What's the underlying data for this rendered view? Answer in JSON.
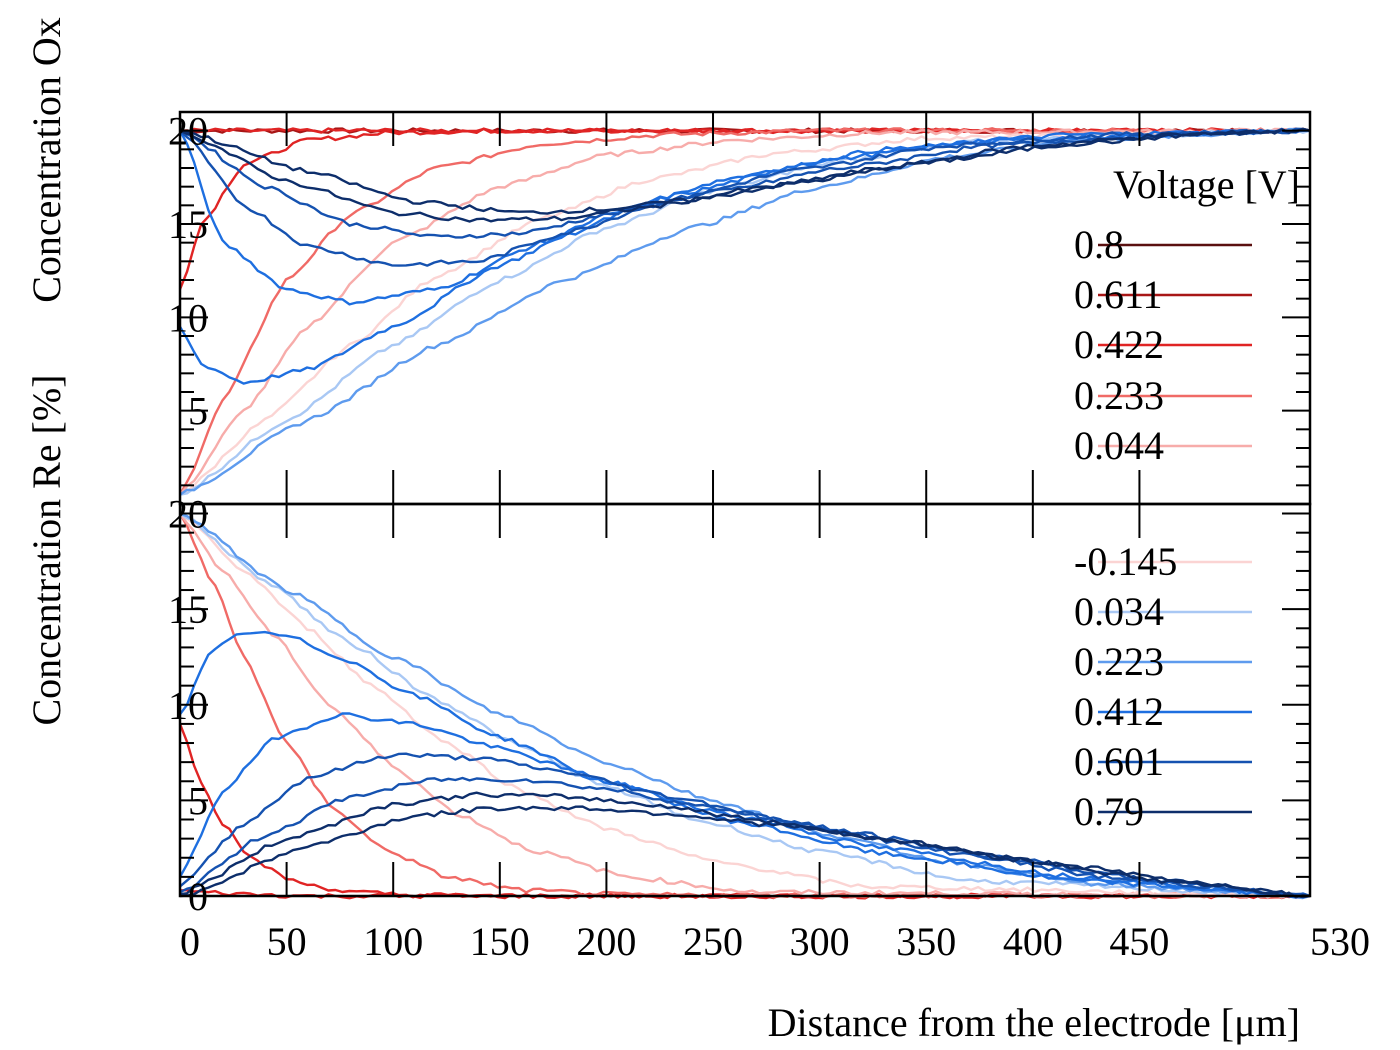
{
  "chart_data": {
    "type": "line",
    "xlabel": "Distance from the electrode [μm]",
    "xticks": [
      "0",
      "50",
      "100",
      "150",
      "200",
      "250",
      "300",
      "350",
      "400",
      "450",
      "530"
    ],
    "xlim": [
      0,
      530
    ],
    "legend": {
      "title": "Voltage [V]",
      "placement": "right",
      "entries": [
        {
          "label": "0.8",
          "color": "#5a1010"
        },
        {
          "label": "0.611",
          "color": "#a81616"
        },
        {
          "label": "0.422",
          "color": "#e02424"
        },
        {
          "label": "0.233",
          "color": "#f06a66"
        },
        {
          "label": "0.044",
          "color": "#f7acaa"
        },
        {
          "label": "-0.145",
          "color": "#fbd4d3"
        },
        {
          "label": "0.034",
          "color": "#a9c8f4"
        },
        {
          "label": "0.223",
          "color": "#5e9bee"
        },
        {
          "label": "0.412",
          "color": "#1e6fe0"
        },
        {
          "label": "0.601",
          "color": "#1552b0"
        },
        {
          "label": "0.79",
          "color": "#0d2e6b"
        }
      ]
    },
    "panels": [
      {
        "name": "top",
        "ylabel": "Concentration Ox",
        "ylim": [
          0,
          21
        ],
        "yticks": [
          "5",
          "10",
          "15",
          "20"
        ],
        "series": [
          {
            "color": "#a81616",
            "x": [
              0,
              530
            ],
            "y": [
              20,
              20
            ]
          },
          {
            "color": "#e02424",
            "x": [
              0,
              530
            ],
            "y": [
              20,
              20
            ]
          },
          {
            "color": "#e02424",
            "x": [
              0,
              10,
              30,
              60,
              100,
              150,
              250,
              530
            ],
            "y": [
              11.5,
              15,
              18.2,
              19.5,
              19.9,
              20,
              20,
              20
            ]
          },
          {
            "color": "#f06a66",
            "x": [
              0,
              20,
              50,
              80,
              120,
              170,
              230,
              300,
              530
            ],
            "y": [
              0.5,
              5.5,
              12,
              15.5,
              18,
              19.3,
              19.8,
              20,
              20
            ]
          },
          {
            "color": "#f7acaa",
            "x": [
              0,
              30,
              60,
              100,
              150,
              200,
              260,
              330,
              530
            ],
            "y": [
              0.5,
              5,
              9.5,
              14,
              17,
              18.7,
              19.5,
              19.9,
              20
            ]
          },
          {
            "color": "#fbd4d3",
            "x": [
              0,
              40,
              80,
              120,
              170,
              220,
              280,
              350,
              530
            ],
            "y": [
              0.5,
              4.5,
              8.5,
              12.2,
              15.3,
              17.4,
              18.8,
              19.6,
              20
            ]
          },
          {
            "color": "#a9c8f4",
            "x": [
              0,
              50,
              100,
              150,
              200,
              250,
              310,
              380,
              530
            ],
            "y": [
              0.5,
              4.5,
              8.5,
              12,
              14.8,
              16.8,
              18.4,
              19.5,
              20
            ]
          },
          {
            "color": "#5e9bee",
            "x": [
              0,
              60,
              120,
              180,
              240,
              300,
              360,
              420,
              530
            ],
            "y": [
              0.5,
              4.5,
              8.5,
              12,
              14.8,
              17,
              18.6,
              19.5,
              20
            ]
          },
          {
            "color": "#1e6fe0",
            "x": [
              0,
              10,
              30,
              60,
              100,
              150,
              200,
              260,
              330,
              420,
              530
            ],
            "y": [
              9.5,
              7.5,
              6.5,
              7.2,
              9.5,
              12.8,
              15.5,
              17.5,
              19,
              19.8,
              20
            ]
          },
          {
            "color": "#1e6fe0",
            "x": [
              0,
              20,
              50,
              80,
              120,
              170,
              230,
              300,
              380,
              530
            ],
            "y": [
              20,
              14,
              11.5,
              10.8,
              11.5,
              14,
              16.5,
              18.4,
              19.5,
              20
            ]
          },
          {
            "color": "#1552b0",
            "x": [
              0,
              30,
              60,
              100,
              140,
              180,
              230,
              290,
              360,
              440,
              530
            ],
            "y": [
              20,
              16,
              13.8,
              12.8,
              13,
              14.5,
              16.3,
              17.9,
              19.2,
              19.8,
              20
            ]
          },
          {
            "color": "#1552b0",
            "x": [
              0,
              40,
              80,
              120,
              160,
              200,
              250,
              310,
              380,
              460,
              530
            ],
            "y": [
              20,
              17,
              15,
              14.3,
              14.5,
              15.5,
              16.7,
              18,
              19.2,
              19.8,
              20
            ]
          },
          {
            "color": "#0d2e6b",
            "x": [
              0,
              50,
              100,
              140,
              180,
              220,
              270,
              330,
              400,
              470,
              530
            ],
            "y": [
              20,
              17.3,
              15.6,
              15.2,
              15.3,
              15.9,
              16.9,
              18,
              19.2,
              19.8,
              20
            ]
          },
          {
            "color": "#0d2e6b",
            "x": [
              0,
              60,
              110,
              160,
              200,
              240,
              290,
              350,
              420,
              480,
              530
            ],
            "y": [
              20,
              17.8,
              16.2,
              15.6,
              15.8,
              16.3,
              17.2,
              18.3,
              19.3,
              19.8,
              20
            ]
          }
        ]
      },
      {
        "name": "bottom",
        "ylabel": "Concentration Re [%]",
        "ylim": [
          0,
          20.5
        ],
        "yticks": [
          "0",
          "5",
          "10",
          "15",
          "20"
        ],
        "series": [
          {
            "color": "#e02424",
            "x": [
              0,
              10,
              30,
              60,
              100,
              530
            ],
            "y": [
              0.3,
              0.2,
              0.1,
              0,
              0,
              0
            ]
          },
          {
            "color": "#e02424",
            "x": [
              0,
              10,
              20,
              35,
              55,
              80,
              110,
              150,
              530
            ],
            "y": [
              9,
              6,
              3.8,
              1.8,
              0.7,
              0.2,
              0.05,
              0,
              0
            ]
          },
          {
            "color": "#f06a66",
            "x": [
              0,
              15,
              30,
              50,
              70,
              95,
              125,
              160,
              210,
              530
            ],
            "y": [
              20,
              16.5,
              12.5,
              8,
              4.8,
              2.5,
              1,
              0.3,
              0.05,
              0
            ]
          },
          {
            "color": "#f7acaa",
            "x": [
              0,
              20,
              45,
              70,
              100,
              130,
              165,
              210,
              270,
              530
            ],
            "y": [
              20,
              17,
              13.5,
              10,
              6.8,
              4.3,
              2.4,
              1,
              0.2,
              0
            ]
          },
          {
            "color": "#fbd4d3",
            "x": [
              0,
              30,
              60,
              90,
              125,
              160,
              200,
              250,
              320,
              530
            ],
            "y": [
              20,
              17,
              14,
              11,
              8,
              5.5,
              3.5,
              1.8,
              0.5,
              0
            ]
          },
          {
            "color": "#a9c8f4",
            "x": [
              0,
              40,
              80,
              120,
              160,
              200,
              245,
              300,
              370,
              530
            ],
            "y": [
              20,
              16.5,
              13.2,
              10.3,
              7.8,
              5.7,
              3.9,
              2.3,
              0.8,
              0
            ]
          },
          {
            "color": "#5e9bee",
            "x": [
              0,
              50,
              100,
              150,
              200,
              250,
              300,
              360,
              430,
              530
            ],
            "y": [
              20,
              16,
              12.5,
              9.5,
              7,
              5,
              3.3,
              1.8,
              0.6,
              0
            ]
          },
          {
            "color": "#1e6fe0",
            "x": [
              0,
              15,
              30,
              50,
              75,
              110,
              150,
              200,
              260,
              330,
              420,
              530
            ],
            "y": [
              9.5,
              12.8,
              13.8,
              13.6,
              12.5,
              10.5,
              8.3,
              6,
              3.9,
              2.2,
              0.8,
              0
            ]
          },
          {
            "color": "#1e6fe0",
            "x": [
              0,
              20,
              45,
              75,
              110,
              150,
              200,
              260,
              330,
              420,
              530
            ],
            "y": [
              1,
              5.5,
              8.3,
              9.5,
              9,
              7.7,
              6,
              4.2,
              2.5,
              1,
              0
            ]
          },
          {
            "color": "#1552b0",
            "x": [
              0,
              30,
              60,
              100,
              140,
              180,
              230,
              290,
              360,
              440,
              530
            ],
            "y": [
              0.5,
              3.8,
              6.2,
              7.4,
              7.2,
              6.5,
              5.2,
              3.8,
              2.3,
              0.9,
              0
            ]
          },
          {
            "color": "#1552b0",
            "x": [
              0,
              40,
              80,
              120,
              160,
              200,
              250,
              310,
              380,
              450,
              530
            ],
            "y": [
              0.2,
              3.2,
              5.2,
              6.1,
              6.1,
              5.6,
              4.6,
              3.4,
              2.1,
              0.9,
              0
            ]
          },
          {
            "color": "#0d2e6b",
            "x": [
              0,
              50,
              100,
              140,
              180,
              220,
              270,
              330,
              400,
              460,
              530
            ],
            "y": [
              0.1,
              3,
              4.8,
              5.3,
              5.2,
              4.8,
              4,
              3,
              1.8,
              0.8,
              0
            ]
          },
          {
            "color": "#0d2e6b",
            "x": [
              0,
              60,
              110,
              150,
              190,
              230,
              280,
              340,
              410,
              470,
              530
            ],
            "y": [
              0,
              2.6,
              4.2,
              4.6,
              4.6,
              4.3,
              3.7,
              2.8,
              1.7,
              0.8,
              0
            ]
          }
        ]
      }
    ]
  }
}
